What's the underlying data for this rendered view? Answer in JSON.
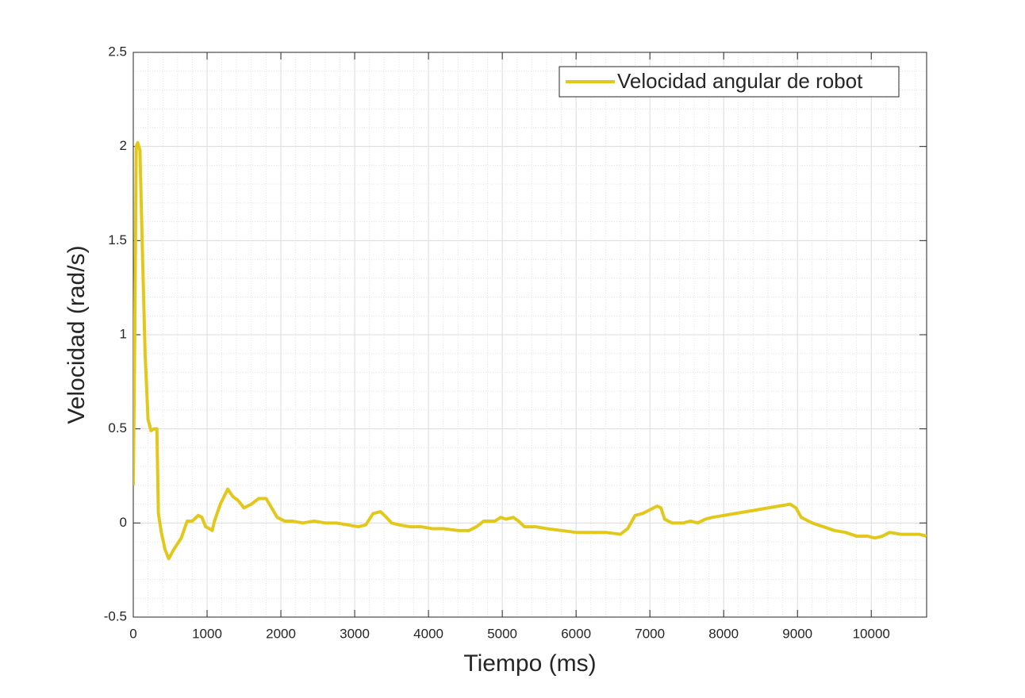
{
  "chart_data": {
    "type": "line",
    "xlabel": "Tiempo (ms)",
    "ylabel": "Velocidad (rad/s)",
    "x": [
      0,
      20,
      40,
      60,
      90,
      120,
      160,
      200,
      240,
      280,
      320,
      340,
      380,
      430,
      480,
      550,
      650,
      730,
      800,
      880,
      930,
      980,
      1030,
      1070,
      1100,
      1180,
      1280,
      1350,
      1420,
      1500,
      1600,
      1700,
      1800,
      1860,
      1950,
      2050,
      2150,
      2300,
      2450,
      2600,
      2750,
      2900,
      3050,
      3150,
      3250,
      3350,
      3430,
      3500,
      3600,
      3750,
      3900,
      4050,
      4200,
      4400,
      4550,
      4650,
      4750,
      4900,
      4980,
      5050,
      5150,
      5220,
      5300,
      5450,
      5600,
      5800,
      6000,
      6200,
      6400,
      6600,
      6700,
      6800,
      6900,
      7000,
      7100,
      7150,
      7200,
      7300,
      7450,
      7550,
      7650,
      7750,
      7850,
      8000,
      8150,
      8300,
      8450,
      8600,
      8750,
      8900,
      8980,
      9050,
      9200,
      9350,
      9500,
      9650,
      9800,
      9950,
      10050,
      10150,
      10250,
      10400,
      10550,
      10650,
      10750
    ],
    "series": [
      {
        "name": "Velocidad angular de robot",
        "color": "#e3c81c",
        "values": [
          0.2,
          1.0,
          2.0,
          2.02,
          1.98,
          1.5,
          0.9,
          0.55,
          0.49,
          0.5,
          0.5,
          0.05,
          -0.05,
          -0.14,
          -0.19,
          -0.14,
          -0.08,
          0.01,
          0.01,
          0.04,
          0.03,
          -0.02,
          -0.03,
          -0.04,
          0.01,
          0.1,
          0.18,
          0.14,
          0.12,
          0.08,
          0.1,
          0.13,
          0.13,
          0.09,
          0.03,
          0.01,
          0.01,
          0,
          0.01,
          0,
          0,
          -0.01,
          -0.02,
          -0.01,
          0.05,
          0.06,
          0.03,
          0,
          -0.01,
          -0.02,
          -0.02,
          -0.03,
          -0.03,
          -0.04,
          -0.04,
          -0.02,
          0.01,
          0.01,
          0.03,
          0.02,
          0.03,
          0.01,
          -0.02,
          -0.02,
          -0.03,
          -0.04,
          -0.05,
          -0.05,
          -0.05,
          -0.06,
          -0.03,
          0.04,
          0.05,
          0.07,
          0.09,
          0.08,
          0.02,
          0,
          0,
          0.01,
          0,
          0.02,
          0.03,
          0.04,
          0.05,
          0.06,
          0.07,
          0.08,
          0.09,
          0.1,
          0.08,
          0.03,
          0,
          -0.02,
          -0.04,
          -0.05,
          -0.07,
          -0.07,
          -0.08,
          -0.07,
          -0.05,
          -0.06,
          -0.06,
          -0.06,
          -0.07
        ]
      }
    ],
    "xlim": [
      0,
      10750
    ],
    "xticks": [
      0,
      1000,
      2000,
      3000,
      4000,
      5000,
      6000,
      7000,
      8000,
      9000,
      10000
    ],
    "ylim": [
      -0.5,
      2.5
    ],
    "yticks": [
      -0.5,
      0,
      0.5,
      1,
      1.5,
      2,
      2.5
    ],
    "grid": true,
    "minor_grid": true,
    "legend": "northeast"
  }
}
